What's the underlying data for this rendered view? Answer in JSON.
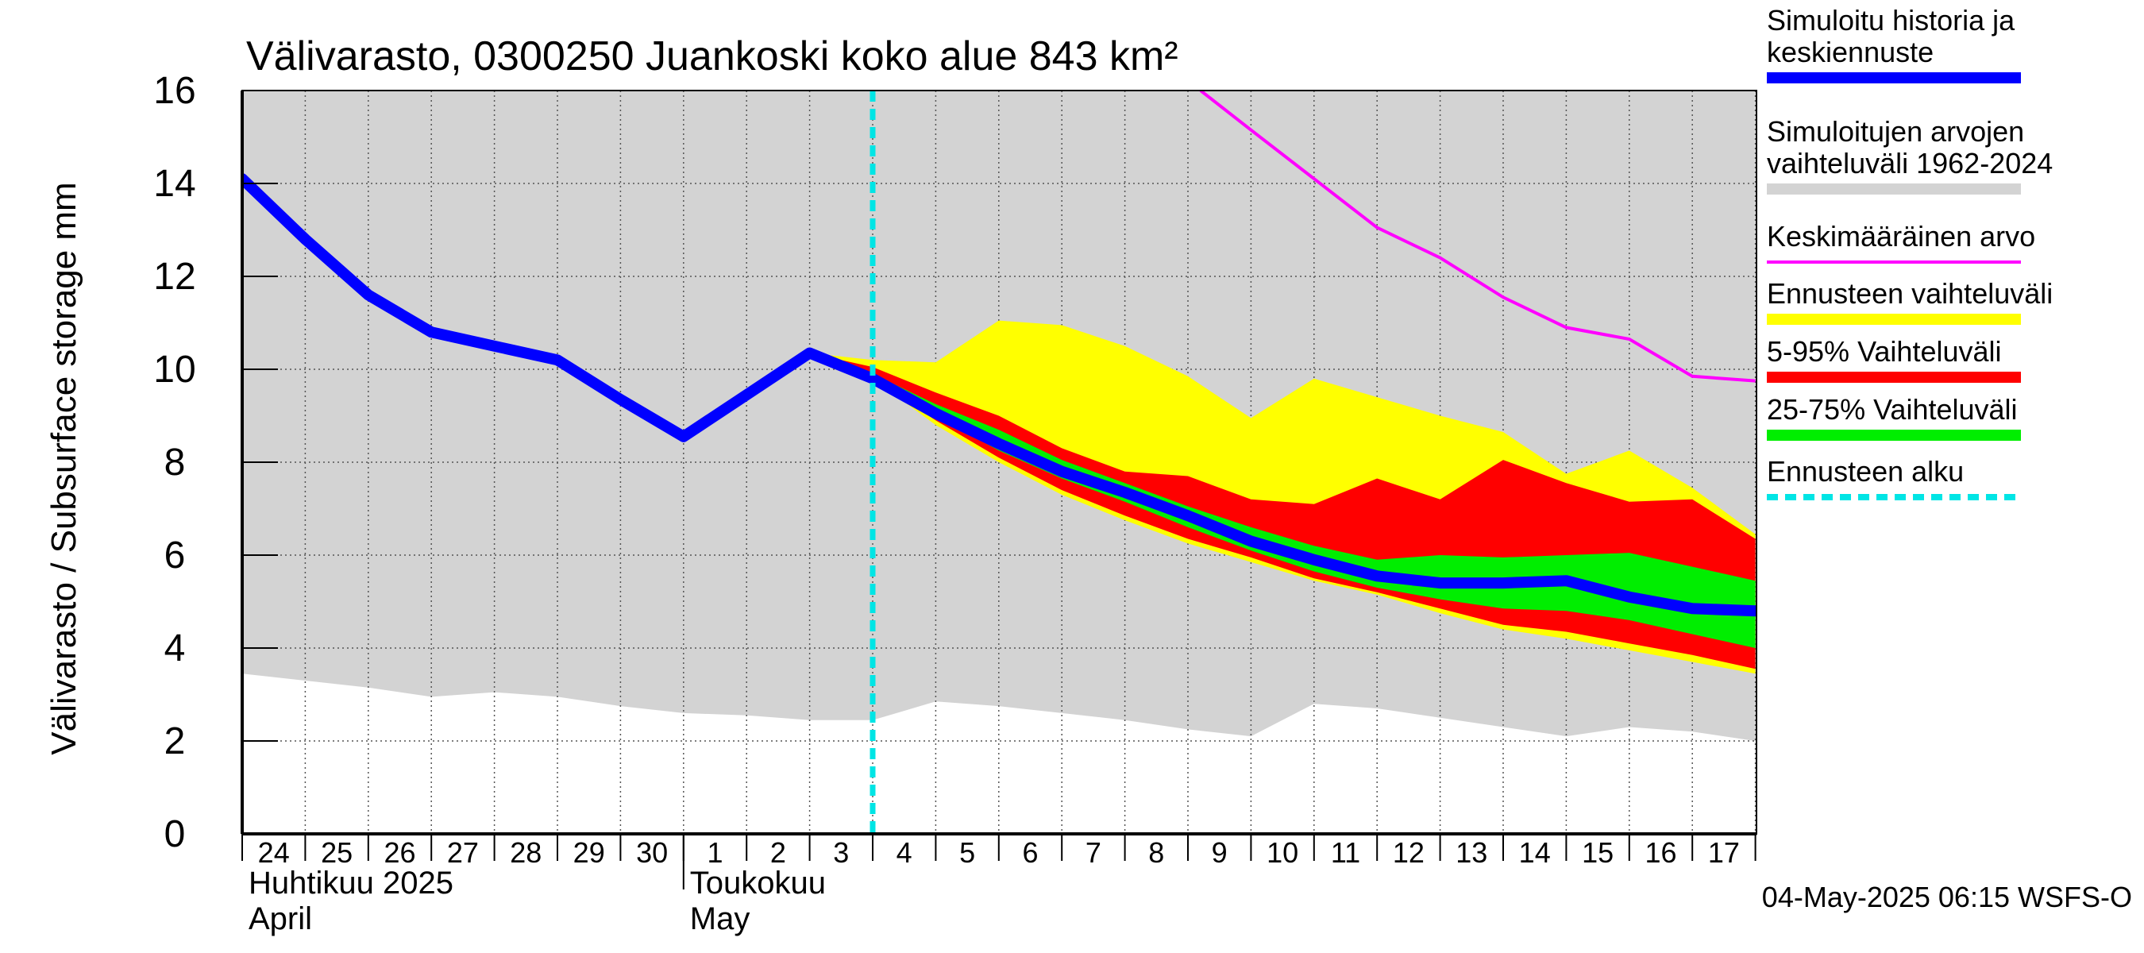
{
  "chart_data": {
    "type": "area",
    "title": "Välivarasto, 0300250 Juankoski koko alue 843 km²",
    "ylabel": "Välivarasto / Subsurface storage  mm",
    "ylim": [
      0,
      16
    ],
    "yticks": [
      "0",
      "2",
      "4",
      "6",
      "8",
      "10",
      "12",
      "14",
      "16"
    ],
    "x_start_day": 24,
    "x_days": 25,
    "day_labels": [
      "24",
      "25",
      "26",
      "27",
      "28",
      "29",
      "30",
      "1",
      "2",
      "3",
      "4",
      "5",
      "6",
      "7",
      "8",
      "9",
      "10",
      "11",
      "12",
      "13",
      "14",
      "15",
      "16",
      "17"
    ],
    "month_labels": [
      {
        "line1": "Huhtikuu  2025",
        "line2": "April"
      },
      {
        "line1": "Toukokuu",
        "line2": "May"
      }
    ],
    "forecast_start_day": 10,
    "x_note": "x values are days since 24 April 2025",
    "series": [
      {
        "name": "Simuloitujen arvojen vaihteluväli 1962-2024",
        "color": "#d3d3d3",
        "x": [
          0,
          1,
          2,
          3,
          4,
          5,
          6,
          7,
          8,
          9,
          10,
          11,
          12,
          13,
          14,
          15,
          16,
          17,
          18,
          19,
          20,
          21,
          22,
          23,
          24
        ],
        "lower": [
          3.45,
          3.3,
          3.15,
          2.95,
          3.05,
          2.95,
          2.75,
          2.6,
          2.55,
          2.45,
          2.45,
          2.85,
          2.75,
          2.6,
          2.45,
          2.25,
          2.1,
          2.8,
          2.7,
          2.5,
          2.3,
          2.1,
          2.3,
          2.2,
          2.0
        ],
        "upper": [
          16,
          16,
          16,
          16,
          16,
          16,
          16,
          16,
          16,
          16,
          16,
          16,
          16,
          16,
          16,
          16,
          16,
          16,
          16,
          16,
          16,
          16,
          16,
          16,
          16
        ]
      },
      {
        "name": "Ennusteen vaihteluväli",
        "color": "#ffff00",
        "x": [
          9,
          10,
          11,
          12,
          13,
          14,
          15,
          16,
          17,
          18,
          19,
          20,
          21,
          22,
          23,
          24
        ],
        "lower": [
          10.35,
          9.8,
          8.8,
          8.0,
          7.3,
          6.75,
          6.25,
          5.85,
          5.45,
          5.15,
          4.75,
          4.4,
          4.2,
          3.95,
          3.7,
          3.45
        ],
        "upper": [
          10.35,
          10.2,
          10.15,
          11.05,
          10.95,
          10.5,
          9.85,
          8.95,
          9.8,
          9.4,
          9.0,
          8.65,
          7.75,
          8.25,
          7.45,
          6.45
        ]
      },
      {
        "name": "5-95% Vaihteluväli",
        "color": "#ff0000",
        "x": [
          9,
          10,
          11,
          12,
          13,
          14,
          15,
          16,
          17,
          18,
          19,
          20,
          21,
          22,
          23,
          24
        ],
        "lower": [
          10.35,
          9.8,
          8.9,
          8.1,
          7.4,
          6.85,
          6.35,
          5.95,
          5.5,
          5.2,
          4.85,
          4.5,
          4.35,
          4.1,
          3.85,
          3.55
        ],
        "upper": [
          10.35,
          10.05,
          9.5,
          9.0,
          8.3,
          7.8,
          7.7,
          7.2,
          7.1,
          7.65,
          7.2,
          8.05,
          7.55,
          7.15,
          7.2,
          6.35
        ]
      },
      {
        "name": "25-75% Vaihteluväli",
        "color": "#00ee00",
        "x": [
          9,
          10,
          11,
          12,
          13,
          14,
          15,
          16,
          17,
          18,
          19,
          20,
          21,
          22,
          23,
          24
        ],
        "lower": [
          10.35,
          9.8,
          9.0,
          8.25,
          7.65,
          7.15,
          6.6,
          6.1,
          5.65,
          5.3,
          5.05,
          4.85,
          4.8,
          4.6,
          4.3,
          4.0
        ],
        "upper": [
          10.35,
          9.9,
          9.25,
          8.7,
          8.05,
          7.55,
          7.05,
          6.6,
          6.2,
          5.9,
          6.0,
          5.95,
          6.0,
          6.05,
          5.75,
          5.45
        ]
      },
      {
        "name": "Keskimääräinen arvo",
        "color": "#ff00ff",
        "x": [
          15.2,
          16,
          17,
          18,
          19,
          20,
          21,
          22,
          23,
          24
        ],
        "values": [
          16.0,
          15.15,
          14.1,
          13.05,
          12.4,
          11.55,
          10.9,
          10.65,
          9.85,
          9.75
        ]
      },
      {
        "name": "Simuloitu historia ja keskiennuste",
        "color": "#0000ff",
        "x": [
          0,
          1,
          2,
          3,
          4,
          5,
          6,
          7,
          8,
          9,
          10,
          11,
          12,
          13,
          14,
          15,
          16,
          17,
          18,
          19,
          20,
          21,
          22,
          23,
          24
        ],
        "values": [
          14.1,
          12.8,
          11.6,
          10.8,
          10.5,
          10.2,
          9.35,
          8.55,
          9.45,
          10.35,
          9.8,
          9.05,
          8.4,
          7.8,
          7.35,
          6.85,
          6.3,
          5.9,
          5.55,
          5.4,
          5.4,
          5.45,
          5.1,
          4.85,
          4.8
        ]
      }
    ],
    "legend": [
      {
        "label_lines": [
          "Simuloitu historia ja",
          "keskiennuste"
        ],
        "color": "#0000ff",
        "style": "thick"
      },
      {
        "label_lines": [
          "Simuloitujen arvojen",
          "vaihteluväli 1962-2024"
        ],
        "color": "#d3d3d3",
        "style": "thick"
      },
      {
        "label_lines": [
          "Keskimääräinen arvo"
        ],
        "color": "#ff00ff",
        "style": "thin"
      },
      {
        "label_lines": [
          "Ennusteen vaihteluväli"
        ],
        "color": "#ffff00",
        "style": "thick"
      },
      {
        "label_lines": [
          "5-95% Vaihteluväli"
        ],
        "color": "#ff0000",
        "style": "thick"
      },
      {
        "label_lines": [
          "25-75% Vaihteluväli"
        ],
        "color": "#00ee00",
        "style": "thick"
      },
      {
        "label_lines": [
          "Ennusteen alku"
        ],
        "color": "#00e5e5",
        "style": "dashed"
      }
    ],
    "footer": "04-May-2025 06:15 WSFS-O"
  }
}
